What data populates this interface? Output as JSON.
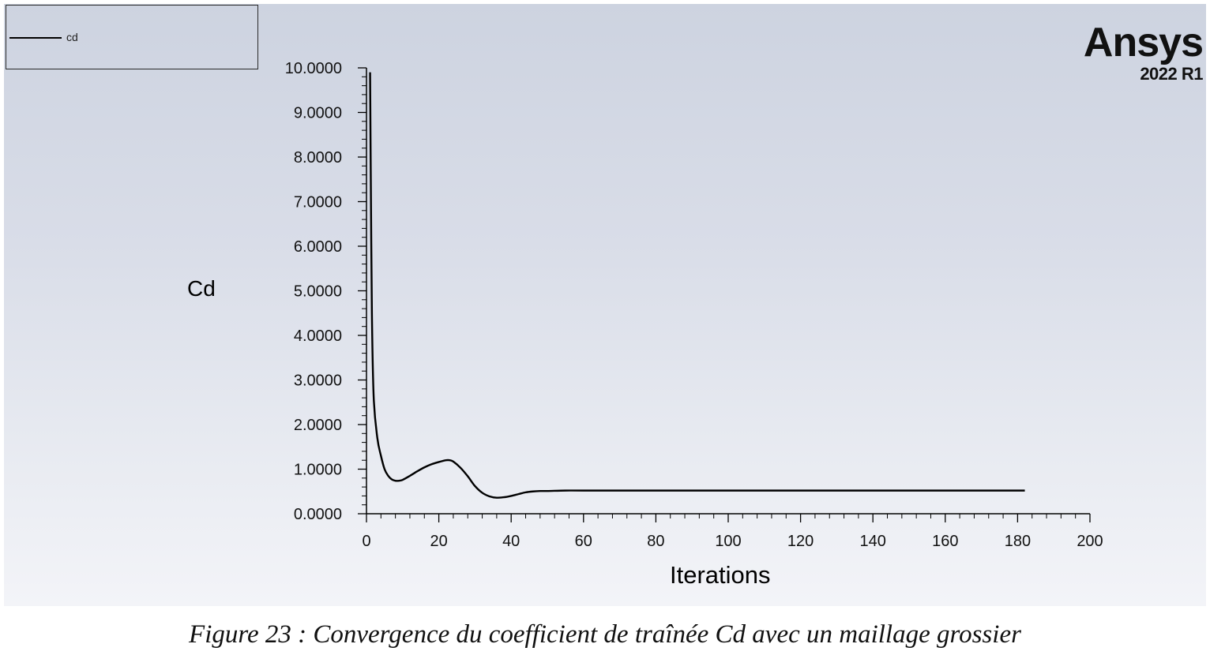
{
  "legend": {
    "label": "cd"
  },
  "logo": {
    "name": "Ansys",
    "version": "2022 R1"
  },
  "caption": "Figure 23 : Convergence du coefficient de traînée Cd avec un maillage grossier",
  "chart_data": {
    "type": "line",
    "xlabel": "Iterations",
    "ylabel": "Cd",
    "xlim": [
      0,
      200
    ],
    "ylim": [
      0,
      10
    ],
    "x_ticks": [
      "0",
      "20",
      "40",
      "60",
      "80",
      "100",
      "120",
      "140",
      "160",
      "180",
      "200"
    ],
    "y_ticks": [
      "0.0000",
      "1.0000",
      "2.0000",
      "3.0000",
      "4.0000",
      "5.0000",
      "6.0000",
      "7.0000",
      "8.0000",
      "9.0000",
      "10.0000"
    ],
    "grid": false,
    "legend_position": "top-left",
    "series": [
      {
        "name": "cd",
        "color": "#000000",
        "x": [
          1,
          1.2,
          1.5,
          2,
          3,
          4,
          5,
          6,
          7,
          8,
          9,
          10,
          12,
          14,
          16,
          18,
          20,
          22,
          23,
          24,
          26,
          28,
          30,
          32,
          34,
          36,
          38,
          40,
          42,
          44,
          46,
          48,
          50,
          55,
          60,
          80,
          100,
          120,
          140,
          160,
          182
        ],
        "y": [
          9.9,
          7.5,
          4.5,
          2.6,
          1.7,
          1.3,
          1.0,
          0.85,
          0.77,
          0.74,
          0.74,
          0.76,
          0.85,
          0.95,
          1.04,
          1.11,
          1.16,
          1.2,
          1.2,
          1.17,
          1.03,
          0.84,
          0.62,
          0.47,
          0.39,
          0.36,
          0.37,
          0.4,
          0.44,
          0.48,
          0.5,
          0.51,
          0.51,
          0.52,
          0.52,
          0.52,
          0.52,
          0.52,
          0.52,
          0.52,
          0.52
        ]
      }
    ]
  }
}
